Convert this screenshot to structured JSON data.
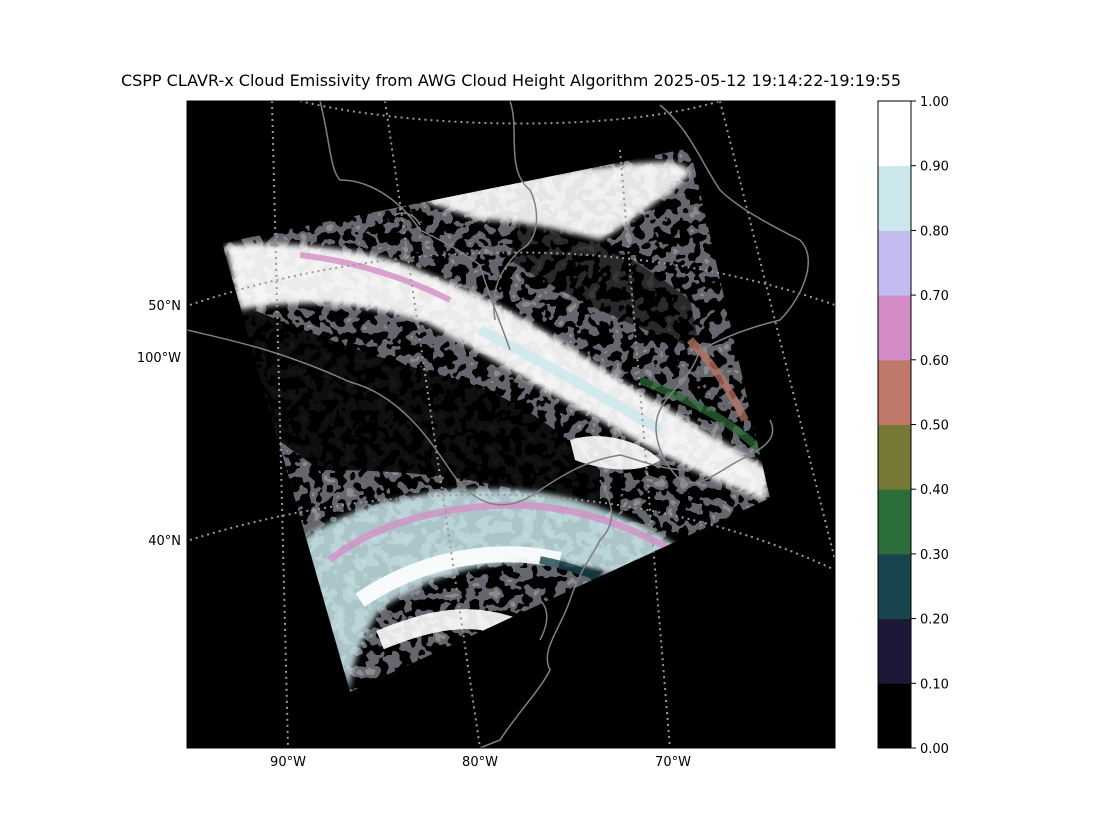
{
  "title": "CSPP CLAVR-x Cloud Emissivity from AWG Cloud Height Algorithm 2025-05-12 19:14:22-19:19:55",
  "map": {
    "left_lat_labels": [
      "50°N",
      "100°W",
      "40°N"
    ],
    "bottom_lon_labels": [
      "90°W",
      "80°W",
      "70°W"
    ],
    "border_color": "#808080",
    "grid_color": "#9a9a9a",
    "background_color": "#000000"
  },
  "colorbar": {
    "ticks": [
      "1.00",
      "0.90",
      "0.80",
      "0.70",
      "0.60",
      "0.50",
      "0.40",
      "0.30",
      "0.20",
      "0.10",
      "0.00"
    ],
    "colors": [
      "#000000",
      "#1e1838",
      "#18444e",
      "#2c6e3a",
      "#777a34",
      "#c07868",
      "#d48cc6",
      "#c2bcf0",
      "#cae8ec",
      "#ffffff"
    ]
  }
}
